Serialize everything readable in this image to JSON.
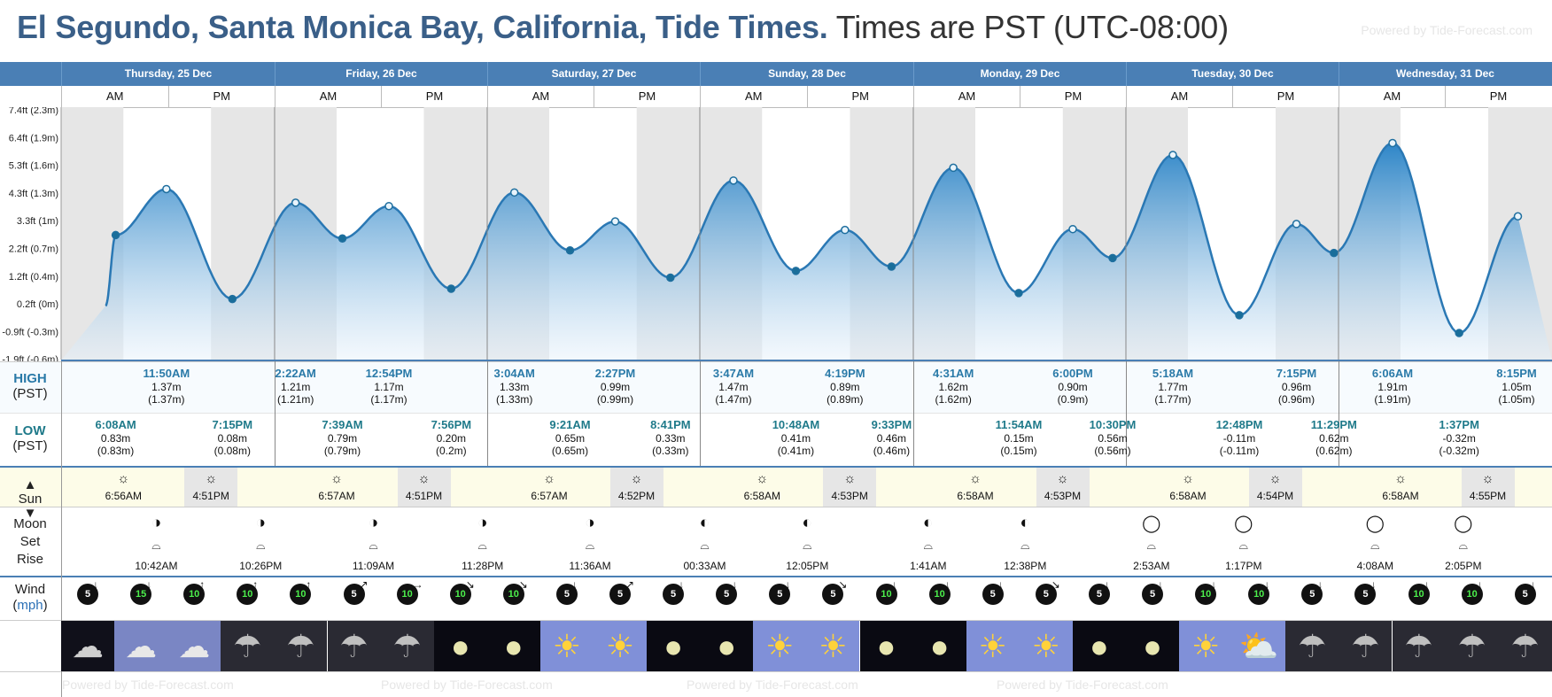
{
  "header": {
    "location": "El Segundo, Santa Monica Bay, California, Tide Times.",
    "timezone": "Times are PST (UTC-08:00)",
    "powered": "Powered by Tide-Forecast.com"
  },
  "colors": {
    "header_blue": "#4a7fb5",
    "title_blue": "#3a5f88",
    "tide_blue": "#2e86c8",
    "sun_bg": "#fdfce8",
    "hi_time": "#2a7aa8",
    "lo_time": "#1f7a8a"
  },
  "days": [
    "Thursday, 25 Dec",
    "Friday, 26 Dec",
    "Saturday, 27 Dec",
    "Sunday, 28 Dec",
    "Monday, 29 Dec",
    "Tuesday, 30 Dec",
    "Wednesday, 31 Dec"
  ],
  "ampm": {
    "am": "AM",
    "pm": "PM"
  },
  "y_axis": [
    "7.4ft (2.3m)",
    "6.4ft (1.9m)",
    "5.3ft (1.6m)",
    "4.3ft (1.3m)",
    "3.3ft (1m)",
    "2.2ft (0.7m)",
    "1.2ft (0.4m)",
    "0.2ft (0m)",
    "-0.9ft (-0.3m)",
    "-1.9ft (-0.6m)"
  ],
  "labels": {
    "high": "HIGH",
    "high_tz": "(PST)",
    "low": "LOW",
    "low_tz": "(PST)",
    "sun": "Sun",
    "moon": "Moon",
    "set": "Set",
    "rise": "Rise",
    "wind": "Wind",
    "wind_unit": "mph"
  },
  "chart_data": {
    "type": "area",
    "y_unit": "m",
    "ylim": [
      -0.6,
      2.3
    ],
    "tide_points": [
      {
        "h": 5.0,
        "m": 0.0,
        "label": "start"
      },
      {
        "h": 6.133,
        "m": 0.83,
        "kind": "low"
      },
      {
        "h": 11.833,
        "m": 1.37,
        "kind": "high"
      },
      {
        "h": 19.25,
        "m": 0.08,
        "kind": "low"
      },
      {
        "h": 26.367,
        "m": 1.21,
        "kind": "high"
      },
      {
        "h": 31.65,
        "m": 0.79,
        "kind": "low"
      },
      {
        "h": 36.9,
        "m": 1.17,
        "kind": "high"
      },
      {
        "h": 43.933,
        "m": 0.2,
        "kind": "low"
      },
      {
        "h": 51.067,
        "m": 1.33,
        "kind": "high"
      },
      {
        "h": 57.35,
        "m": 0.65,
        "kind": "low"
      },
      {
        "h": 62.45,
        "m": 0.99,
        "kind": "high"
      },
      {
        "h": 68.683,
        "m": 0.33,
        "kind": "low"
      },
      {
        "h": 75.783,
        "m": 1.47,
        "kind": "high"
      },
      {
        "h": 82.8,
        "m": 0.41,
        "kind": "low"
      },
      {
        "h": 88.317,
        "m": 0.89,
        "kind": "high"
      },
      {
        "h": 93.55,
        "m": 0.46,
        "kind": "low"
      },
      {
        "h": 100.517,
        "m": 1.62,
        "kind": "high"
      },
      {
        "h": 107.9,
        "m": 0.15,
        "kind": "low"
      },
      {
        "h": 114.0,
        "m": 0.9,
        "kind": "high"
      },
      {
        "h": 118.5,
        "m": 0.56,
        "kind": "low"
      },
      {
        "h": 125.3,
        "m": 1.77,
        "kind": "high"
      },
      {
        "h": 132.8,
        "m": -0.11,
        "kind": "low"
      },
      {
        "h": 139.25,
        "m": 0.96,
        "kind": "high"
      },
      {
        "h": 143.483,
        "m": 0.62,
        "kind": "low"
      },
      {
        "h": 150.1,
        "m": 1.91,
        "kind": "high"
      },
      {
        "h": 157.617,
        "m": -0.32,
        "kind": "low"
      },
      {
        "h": 164.25,
        "m": 1.05,
        "kind": "high"
      }
    ]
  },
  "high_tides": [
    {
      "time": "11:50AM",
      "ft": "1.37m",
      "m": "(1.37m)"
    },
    {
      "time": "2:22AM",
      "ft": "1.21m",
      "m": "(1.21m)"
    },
    {
      "time": "12:54PM",
      "ft": "1.17m",
      "m": "(1.17m)"
    },
    {
      "time": "3:04AM",
      "ft": "1.33m",
      "m": "(1.33m)"
    },
    {
      "time": "2:27PM",
      "ft": "0.99m",
      "m": "(0.99m)"
    },
    {
      "time": "3:47AM",
      "ft": "1.47m",
      "m": "(1.47m)"
    },
    {
      "time": "4:19PM",
      "ft": "0.89m",
      "m": "(0.89m)"
    },
    {
      "time": "4:31AM",
      "ft": "1.62m",
      "m": "(1.62m)"
    },
    {
      "time": "6:00PM",
      "ft": "0.90m",
      "m": "(0.9m)"
    },
    {
      "time": "5:18AM",
      "ft": "1.77m",
      "m": "(1.77m)"
    },
    {
      "time": "7:15PM",
      "ft": "0.96m",
      "m": "(0.96m)"
    },
    {
      "time": "6:06AM",
      "ft": "1.91m",
      "m": "(1.91m)"
    },
    {
      "time": "8:15PM",
      "ft": "1.05m",
      "m": "(1.05m)"
    }
  ],
  "low_tides": [
    {
      "time": "6:08AM",
      "ft": "0.83m",
      "m": "(0.83m)"
    },
    {
      "time": "7:15PM",
      "ft": "0.08m",
      "m": "(0.08m)"
    },
    {
      "time": "7:39AM",
      "ft": "0.79m",
      "m": "(0.79m)"
    },
    {
      "time": "7:56PM",
      "ft": "0.20m",
      "m": "(0.2m)"
    },
    {
      "time": "9:21AM",
      "ft": "0.65m",
      "m": "(0.65m)"
    },
    {
      "time": "8:41PM",
      "ft": "0.33m",
      "m": "(0.33m)"
    },
    {
      "time": "10:48AM",
      "ft": "0.41m",
      "m": "(0.41m)"
    },
    {
      "time": "9:33PM",
      "ft": "0.46m",
      "m": "(0.46m)"
    },
    {
      "time": "11:54AM",
      "ft": "0.15m",
      "m": "(0.15m)"
    },
    {
      "time": "10:30PM",
      "ft": "0.56m",
      "m": "(0.56m)"
    },
    {
      "time": "12:48PM",
      "ft": "-0.11m",
      "m": "(-0.11m)"
    },
    {
      "time": "11:29PM",
      "ft": "0.62m",
      "m": "(0.62m)"
    },
    {
      "time": "1:37PM",
      "ft": "-0.32m",
      "m": "(-0.32m)"
    }
  ],
  "sunrise": [
    "6:56AM",
    "6:57AM",
    "6:57AM",
    "6:58AM",
    "6:58AM",
    "6:58AM",
    "6:58AM"
  ],
  "sunset": [
    "4:51PM",
    "4:51PM",
    "4:52PM",
    "4:53PM",
    "4:53PM",
    "4:54PM",
    "4:55PM"
  ],
  "moon": [
    "10:42AM",
    "10:26PM",
    "11:09AM",
    "11:28PM",
    "11:36AM",
    "00:33AM",
    "12:05PM",
    "1:41AM",
    "12:38PM",
    "2:53AM",
    "1:17PM",
    "4:08AM",
    "2:05PM"
  ],
  "wind": [
    5,
    15,
    10,
    10,
    10,
    5,
    10,
    10,
    10,
    5,
    5,
    5,
    5,
    5,
    5,
    10,
    10,
    5,
    5,
    5,
    5,
    10,
    10,
    5,
    5,
    10,
    10,
    5
  ],
  "weather": [
    "cloud-night",
    "cloud-day",
    "cloud-day",
    "rain",
    "rain",
    "rain",
    "rain",
    "moon",
    "moon",
    "sun",
    "sun",
    "moon",
    "moon",
    "sun",
    "sun",
    "moon",
    "moon",
    "sun",
    "sun",
    "moon",
    "moon",
    "sun",
    "partly",
    "rain",
    "rain",
    "rain",
    "rain",
    "rain"
  ]
}
